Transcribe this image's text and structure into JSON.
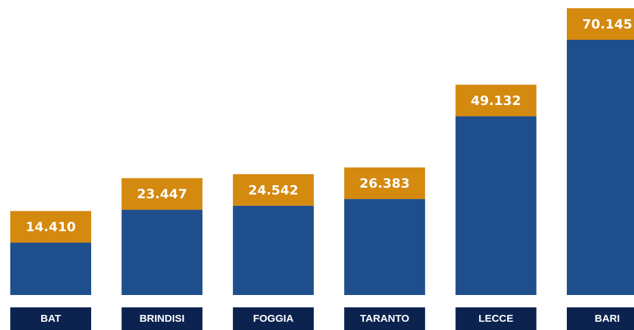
{
  "chart_data": {
    "type": "bar",
    "categories": [
      "BAT",
      "BRINDISI",
      "FOGGIA",
      "TARANTO",
      "LECCE",
      "BARI"
    ],
    "values": [
      14410,
      23447,
      24542,
      26383,
      49132,
      70145
    ],
    "value_labels": [
      "14.410",
      "23.447",
      "24.542",
      "26.383",
      "49.132",
      "70.145"
    ],
    "color": "#1f4e8c",
    "value_label_color": "#d4890f",
    "category_label_color": "#0c2350"
  }
}
